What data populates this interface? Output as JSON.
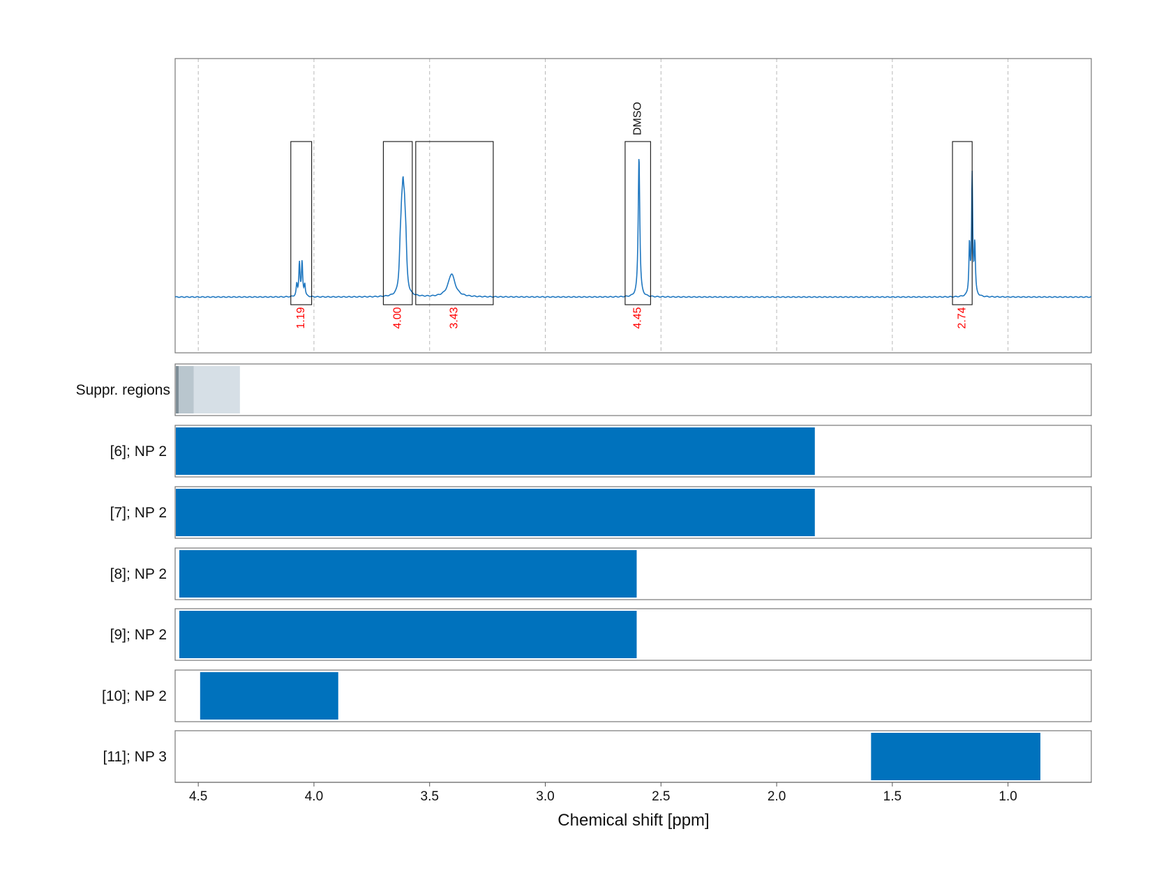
{
  "chart_data": {
    "type": "nmr-spectrum-with-range-bars",
    "xlabel": "Chemical shift [ppm]",
    "xlim": [
      4.6,
      0.64
    ],
    "x_reversed": true,
    "x_ticks": [
      4.5,
      4.0,
      3.5,
      3.0,
      2.5,
      2.0,
      1.5,
      1.0
    ],
    "x_tick_labels": [
      "4.5",
      "4.0",
      "3.5",
      "3.0",
      "2.5",
      "2.0",
      "1.5",
      "1.0"
    ],
    "grid": "vertical-dashed",
    "line_color": "#1f77c0",
    "bar_color": "#0072bd",
    "integral_label_color": "#ff0000",
    "spectrum_peaks": [
      {
        "center": 4.057,
        "shape": "quartet",
        "height": 0.22,
        "width": 0.003
      },
      {
        "center": 3.615,
        "shape": "multiplet",
        "height": 0.45,
        "width": 0.005
      },
      {
        "center": 3.405,
        "shape": "broad",
        "height": 0.15,
        "width": 0.018
      },
      {
        "center": 2.595,
        "shape": "singlet",
        "height": 0.92,
        "width": 0.004
      },
      {
        "center": 1.155,
        "shape": "triplet",
        "height": 0.78,
        "width": 0.003
      }
    ],
    "integration_regions": [
      {
        "from": 4.1,
        "to": 4.01,
        "label": "1.19"
      },
      {
        "from": 3.7,
        "to": 3.575,
        "label": "4.00"
      },
      {
        "from": 3.56,
        "to": 3.225,
        "label": "3.43"
      },
      {
        "from": 2.655,
        "to": 2.545,
        "label": "4.45",
        "annotation": "DMSO"
      },
      {
        "from": 1.24,
        "to": 1.155,
        "label": "2.74"
      }
    ],
    "suppression_regions": {
      "label": "Suppr. regions",
      "bands": [
        {
          "from": 4.6,
          "to": 4.32,
          "color": "#d6dfe6"
        },
        {
          "from": 4.6,
          "to": 4.52,
          "color": "#b9c6ce"
        },
        {
          "from": 4.6,
          "to": 4.585,
          "color": "#7d8d96"
        }
      ]
    },
    "range_rows": [
      {
        "label": "[6]; NP 2",
        "from": 4.6,
        "to": 1.835
      },
      {
        "label": "[7]; NP 2",
        "from": 4.6,
        "to": 1.835
      },
      {
        "label": "[8]; NP 2",
        "from": 4.585,
        "to": 2.605
      },
      {
        "label": "[9]; NP 2",
        "from": 4.585,
        "to": 2.605
      },
      {
        "label": "[10]; NP 2",
        "from": 4.495,
        "to": 3.895
      },
      {
        "label": "[11]; NP 3",
        "from": 1.595,
        "to": 0.86
      }
    ]
  }
}
